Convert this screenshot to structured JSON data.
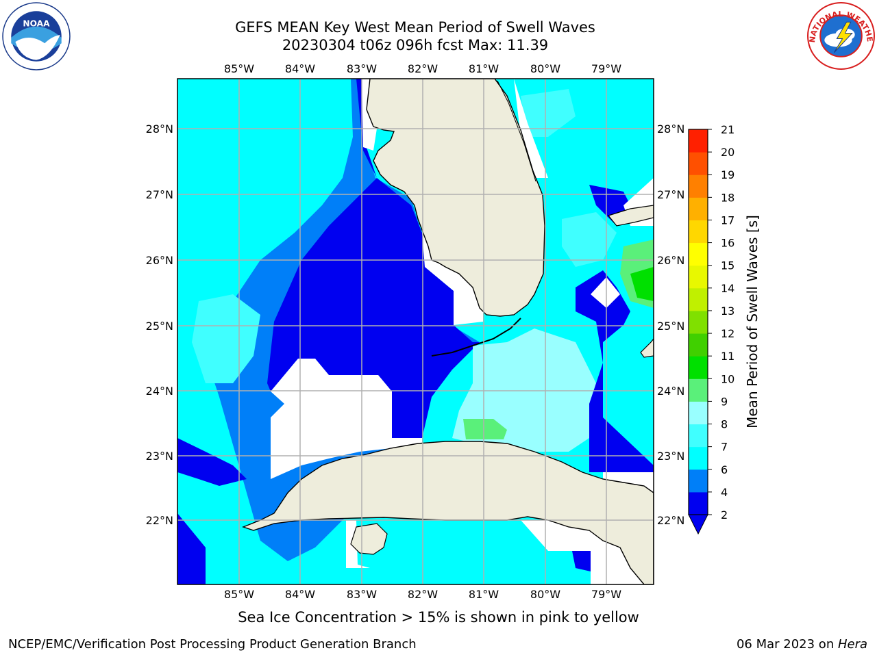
{
  "header": {
    "title_line1": "GEFS MEAN Key West Mean Period of Swell Waves",
    "title_line2": "20230304 t06z 096h fcst   Max: 11.39"
  },
  "logos": {
    "left": "noaa-logo",
    "right": "nws-logo",
    "nws_text": "NATIONAL WEATHER SERVICE"
  },
  "map": {
    "lon_labels": [
      "85°W",
      "84°W",
      "83°W",
      "82°W",
      "81°W",
      "80°W",
      "79°W"
    ],
    "lat_labels": [
      "28°N",
      "27°N",
      "26°N",
      "25°N",
      "24°N",
      "23°N",
      "22°N"
    ],
    "land_color": "#eeeddc",
    "grid_color": "#b0b0b0"
  },
  "colorbar": {
    "label": "Mean Period of Swell Waves [s]",
    "ticks": [
      "2",
      "4",
      "6",
      "7",
      "8",
      "9",
      "10",
      "11",
      "12",
      "13",
      "14",
      "15",
      "16",
      "17",
      "18",
      "19",
      "20",
      "21"
    ],
    "colors": [
      "#0000f0",
      "#007ff8",
      "#00ffff",
      "#40ffff",
      "#99ffff",
      "#5af07a",
      "#00e000",
      "#40d000",
      "#80e000",
      "#c0f000",
      "#e8f800",
      "#ffff00",
      "#ffd700",
      "#ffb000",
      "#ff8000",
      "#ff5000",
      "#ff2000"
    ],
    "under_color": "#0000f0"
  },
  "footer": {
    "note": "Sea Ice Concentration > 15% is shown in pink to yellow",
    "left": "NCEP/EMC/Verification Post Processing Product Generation Branch",
    "date": "06 Mar 2023 on ",
    "machine": "Hera"
  }
}
